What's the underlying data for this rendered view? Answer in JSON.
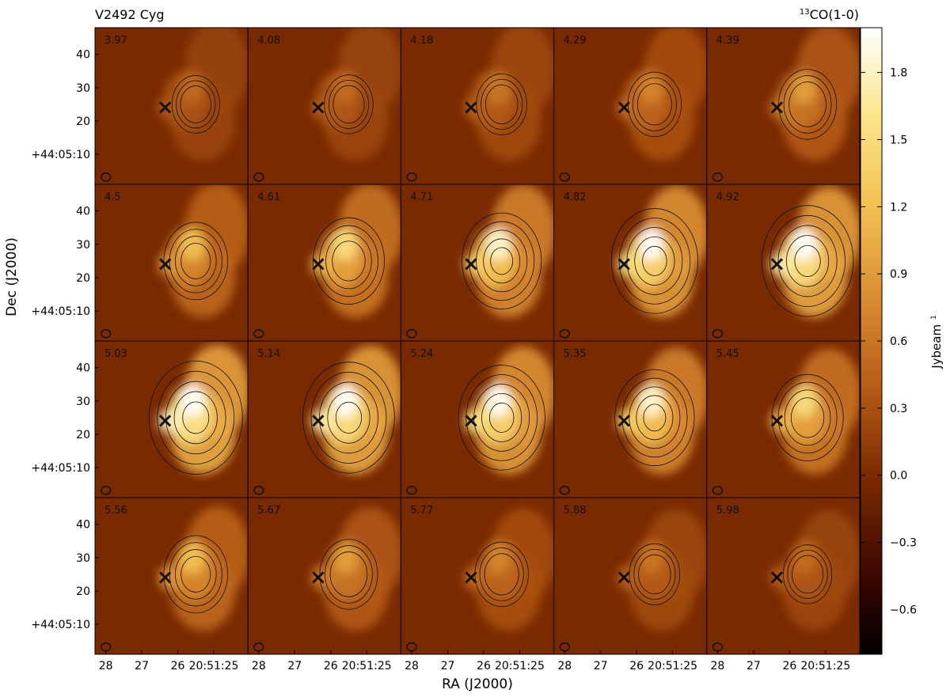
{
  "chart_data": {
    "type": "heatmap",
    "title_left": "V2492 Cyg",
    "title_right_sup": "13",
    "title_right_main": "CO(1-0)",
    "xlabel": "RA (J2000)",
    "ylabel": "Dec (J2000)",
    "colorbar_label": "Jybeam",
    "colorbar_label_sup": "1",
    "colorbar_range": [
      -0.8,
      2.0
    ],
    "colorbar_ticks": [
      "1.8",
      "1.5",
      "1.2",
      "0.9",
      "0.6",
      "0.3",
      "0.0",
      "−0.3",
      "−0.6"
    ],
    "colorbar_tick_values": [
      1.8,
      1.5,
      1.2,
      0.9,
      0.6,
      0.3,
      0.0,
      -0.3,
      -0.6
    ],
    "y_ticks": [
      "40",
      "30",
      "20",
      "+44:05:10"
    ],
    "y_tick_values": [
      40,
      30,
      20,
      10
    ],
    "x_ticks": [
      "28",
      "27",
      "26",
      "20:51:25"
    ],
    "x_tick_values": [
      28,
      27,
      26,
      25
    ],
    "grid_rows": 4,
    "grid_cols": 5,
    "channels": [
      "3.97",
      "4.08",
      "4.18",
      "4.29",
      "4.39",
      "4.5",
      "4.61",
      "4.71",
      "4.82",
      "4.92",
      "5.03",
      "5.14",
      "5.24",
      "5.35",
      "5.45",
      "5.56",
      "5.67",
      "5.77",
      "5.88",
      "5.98"
    ],
    "source_marker": {
      "symbol": "×",
      "ra_offset": 26.35,
      "dec": 24
    },
    "colormap": [
      "#000000",
      "#3a0600",
      "#7a2a00",
      "#b45a16",
      "#d88a30",
      "#f4c253",
      "#fbe58a",
      "#ffffff"
    ]
  }
}
